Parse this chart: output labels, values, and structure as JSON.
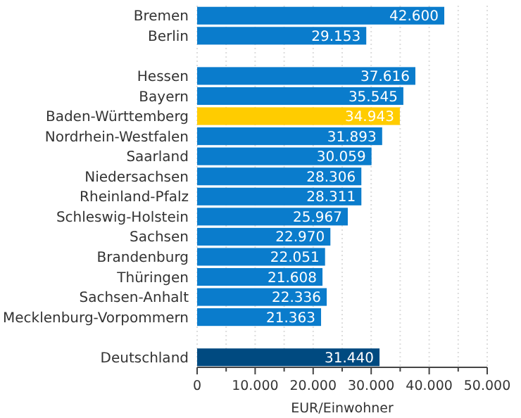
{
  "chart_data": {
    "type": "bar",
    "orientation": "horizontal",
    "xlabel": "EUR/Einwohner",
    "categories": [
      "Bremen",
      "Berlin",
      null,
      "Hessen",
      "Bayern",
      "Baden-Württemberg",
      "Nordrhein-Westfalen",
      "Saarland",
      "Niedersachsen",
      "Rheinland-Pfalz",
      "Schleswig-Holstein",
      "Sachsen",
      "Brandenburg",
      "Thüringen",
      "Sachsen-Anhalt",
      "Mecklenburg-Vorpommern",
      null,
      "Deutschland"
    ],
    "values": [
      42600,
      29153,
      null,
      37616,
      35545,
      34943,
      31893,
      30059,
      28306,
      28311,
      25967,
      22970,
      22051,
      21608,
      22336,
      21363,
      null,
      31440
    ],
    "value_labels": [
      "42.600",
      "29.153",
      null,
      "37.616",
      "35.545",
      "34.943",
      "31.893",
      "30.059",
      "28.306",
      "28.311",
      "25.967",
      "22.970",
      "22.051",
      "21.608",
      "22.336",
      "21.363",
      null,
      "31.440"
    ],
    "colors": [
      "#0a7ccc",
      "#0a7ccc",
      null,
      "#0a7ccc",
      "#0a7ccc",
      "#ffcc00",
      "#0a7ccc",
      "#0a7ccc",
      "#0a7ccc",
      "#0a7ccc",
      "#0a7ccc",
      "#0a7ccc",
      "#0a7ccc",
      "#0a7ccc",
      "#0a7ccc",
      "#0a7ccc",
      null,
      "#004a80"
    ],
    "xlim": [
      0,
      50000
    ],
    "xticks": [
      {
        "value": 0,
        "label": "0"
      },
      {
        "value": 5000,
        "label": null
      },
      {
        "value": 10000,
        "label": "10.000"
      },
      {
        "value": 15000,
        "label": null
      },
      {
        "value": 20000,
        "label": "20.000"
      },
      {
        "value": 25000,
        "label": null
      },
      {
        "value": 30000,
        "label": "30.000"
      },
      {
        "value": 35000,
        "label": null
      },
      {
        "value": 40000,
        "label": "40.000"
      },
      {
        "value": 45000,
        "label": null
      },
      {
        "value": 50000,
        "label": "50.000"
      }
    ],
    "grid": "x"
  }
}
